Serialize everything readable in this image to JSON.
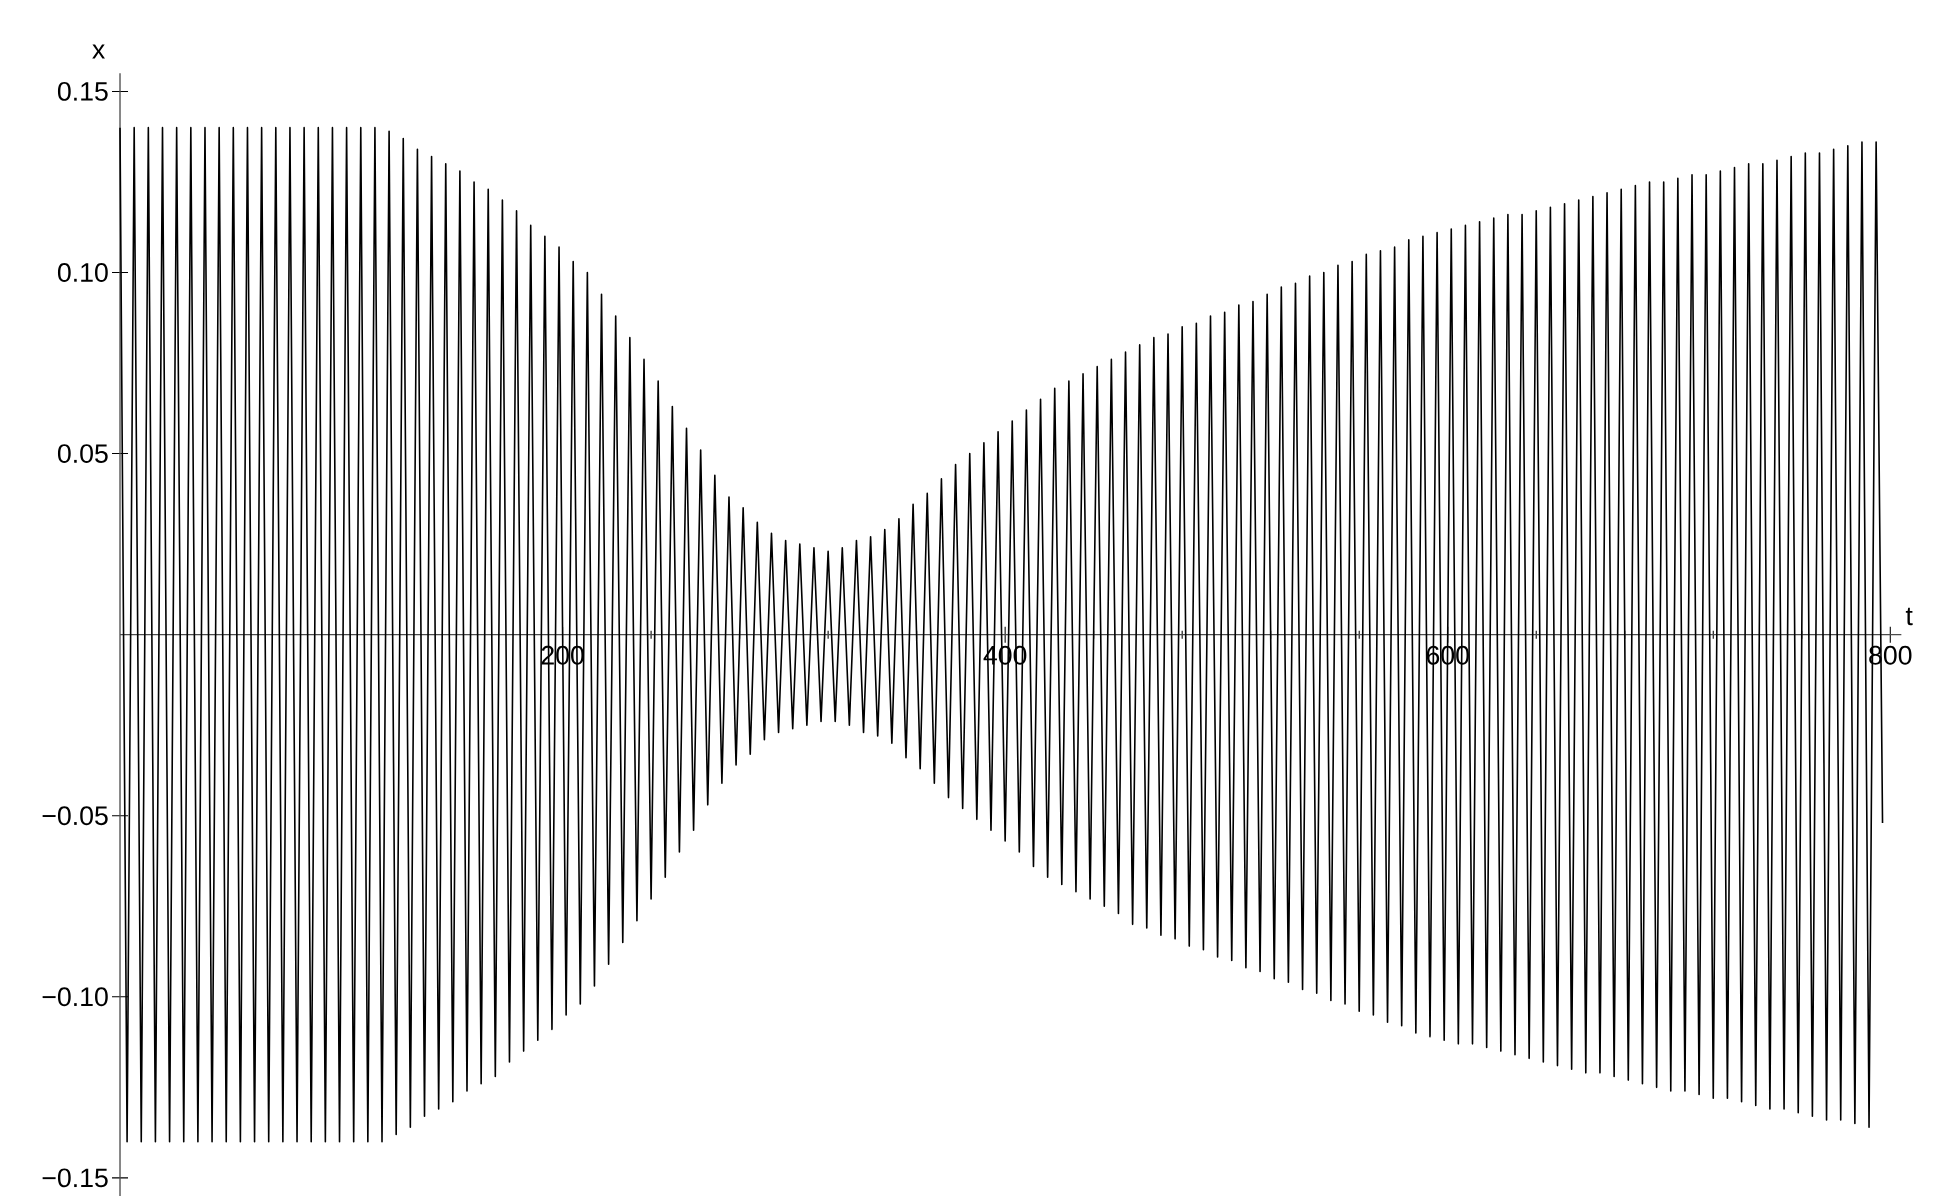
{
  "chart_data": {
    "type": "line",
    "xlabel": "t",
    "ylabel": "x",
    "marker": "none",
    "grid": false,
    "xlim": [
      0,
      805
    ],
    "ylim": [
      -0.155,
      0.155
    ],
    "xticks": [
      200,
      400,
      600,
      800
    ],
    "yticks": [
      {
        "value": -0.15,
        "label": "−0.15"
      },
      {
        "value": -0.1,
        "label": "−0.10"
      },
      {
        "value": -0.05,
        "label": "−0.05"
      },
      {
        "value": 0.05,
        "label": "0.05"
      },
      {
        "value": 0.1,
        "label": "0.10"
      },
      {
        "value": 0.15,
        "label": "0.15"
      }
    ],
    "series": [
      {
        "color": "#000000",
        "x": [
          0,
          3.2,
          6.4,
          9.6,
          12.8,
          16,
          19.2,
          22.4,
          25.6,
          28.8,
          32,
          35.2,
          38.4,
          41.6,
          44.8,
          48,
          51.2,
          54.4,
          57.6,
          60.8,
          64,
          67.2,
          70.4,
          73.6,
          76.8,
          80,
          83.2,
          86.4,
          89.6,
          92.8,
          96,
          99.2,
          102.4,
          105.6,
          108.8,
          112,
          115.2,
          118.4,
          121.6,
          124.8,
          128,
          131.2,
          134.4,
          137.6,
          140.8,
          144,
          147.2,
          150.4,
          153.6,
          156.8,
          160,
          163.2,
          166.4,
          169.6,
          172.8,
          176,
          179.2,
          182.4,
          185.6,
          188.8,
          192,
          195.2,
          198.4,
          201.6,
          204.8,
          208,
          211.2,
          214.4,
          217.6,
          220.8,
          224,
          227.2,
          230.4,
          233.6,
          236.8,
          240,
          243.2,
          246.4,
          249.6,
          252.8,
          256,
          259.2,
          262.4,
          265.6,
          268.8,
          272,
          275.2,
          278.4,
          281.6,
          284.8,
          288,
          291.2,
          294.4,
          297.6,
          300.8,
          304,
          307.2,
          310.4,
          313.6,
          316.8,
          320,
          323.2,
          326.4,
          329.6,
          332.8,
          336,
          339.2,
          342.4,
          345.6,
          348.8,
          352,
          355.2,
          358.4,
          361.6,
          364.8,
          368,
          371.2,
          374.4,
          377.6,
          380.8,
          384,
          387.2,
          390.4,
          393.6,
          396.8,
          400,
          403.2,
          406.4,
          409.6,
          412.8,
          416,
          419.2,
          422.4,
          425.6,
          428.8,
          432,
          435.2,
          438.4,
          441.6,
          444.8,
          448,
          451.2,
          454.4,
          457.6,
          460.8,
          464,
          467.2,
          470.4,
          473.6,
          476.8,
          480,
          483.2,
          486.4,
          489.6,
          492.8,
          496,
          499.2,
          502.4,
          505.6,
          508.8,
          512,
          515.2,
          518.4,
          521.6,
          524.8,
          528,
          531.2,
          534.4,
          537.6,
          540.8,
          544,
          547.2,
          550.4,
          553.6,
          556.8,
          560,
          563.2,
          566.4,
          569.6,
          572.8,
          576,
          579.2,
          582.4,
          585.6,
          588.8,
          592,
          595.2,
          598.4,
          601.6,
          604.8,
          608,
          611.2,
          614.4,
          617.6,
          620.8,
          624,
          627.2,
          630.4,
          633.6,
          636.8,
          640,
          643.2,
          646.4,
          649.6,
          652.8,
          656,
          659.2,
          662.4,
          665.6,
          668.8,
          672,
          675.2,
          678.4,
          681.6,
          684.8,
          688,
          691.2,
          694.4,
          697.6,
          700.8,
          704,
          707.2,
          710.4,
          713.6,
          716.8,
          720,
          723.2,
          726.4,
          729.6,
          732.8,
          736,
          739.2,
          742.4,
          745.6,
          748.8,
          752,
          755.2,
          758.4,
          761.6,
          764.8,
          768,
          771.2,
          774.4,
          777.6,
          780.8,
          784,
          787.2,
          790.4,
          793.6,
          796.5
        ],
        "values": [
          0.14,
          -0.14,
          0.14,
          -0.14,
          0.14,
          -0.14,
          0.14,
          -0.14,
          0.14,
          -0.14,
          0.14,
          -0.14,
          0.14,
          -0.14,
          0.14,
          -0.14,
          0.14,
          -0.14,
          0.14,
          -0.14,
          0.14,
          -0.14,
          0.14,
          -0.14,
          0.14,
          -0.14,
          0.14,
          -0.14,
          0.14,
          -0.14,
          0.14,
          -0.14,
          0.14,
          -0.14,
          0.14,
          -0.14,
          0.14,
          -0.14,
          0.139,
          -0.138,
          0.137,
          -0.136,
          0.134,
          -0.133,
          0.132,
          -0.131,
          0.13,
          -0.129,
          0.128,
          -0.126,
          0.125,
          -0.124,
          0.123,
          -0.122,
          0.12,
          -0.118,
          0.117,
          -0.115,
          0.113,
          -0.112,
          0.11,
          -0.109,
          0.107,
          -0.105,
          0.103,
          -0.102,
          0.1,
          -0.097,
          0.094,
          -0.091,
          0.088,
          -0.085,
          0.082,
          -0.079,
          0.076,
          -0.073,
          0.07,
          -0.067,
          0.063,
          -0.06,
          0.057,
          -0.054,
          0.051,
          -0.047,
          0.044,
          -0.041,
          0.038,
          -0.036,
          0.035,
          -0.033,
          0.031,
          -0.029,
          0.028,
          -0.027,
          0.026,
          -0.026,
          0.025,
          -0.025,
          0.024,
          -0.024,
          0.023,
          -0.024,
          0.024,
          -0.025,
          0.026,
          -0.027,
          0.027,
          -0.028,
          0.029,
          -0.03,
          0.032,
          -0.034,
          0.036,
          -0.037,
          0.039,
          -0.041,
          0.043,
          -0.045,
          0.047,
          -0.048,
          0.05,
          -0.051,
          0.053,
          -0.054,
          0.056,
          -0.057,
          0.059,
          -0.06,
          0.062,
          -0.064,
          0.065,
          -0.067,
          0.068,
          -0.069,
          0.07,
          -0.071,
          0.072,
          -0.073,
          0.074,
          -0.075,
          0.076,
          -0.077,
          0.078,
          -0.08,
          0.08,
          -0.081,
          0.082,
          -0.083,
          0.083,
          -0.084,
          0.085,
          -0.086,
          0.086,
          -0.087,
          0.088,
          -0.089,
          0.089,
          -0.09,
          0.091,
          -0.092,
          0.092,
          -0.093,
          0.094,
          -0.095,
          0.096,
          -0.096,
          0.097,
          -0.098,
          0.099,
          -0.099,
          0.1,
          -0.101,
          0.102,
          -0.102,
          0.103,
          -0.104,
          0.105,
          -0.105,
          0.106,
          -0.107,
          0.107,
          -0.108,
          0.109,
          -0.11,
          0.11,
          -0.111,
          0.111,
          -0.112,
          0.112,
          -0.113,
          0.113,
          -0.113,
          0.114,
          -0.114,
          0.115,
          -0.115,
          0.116,
          -0.116,
          0.116,
          -0.117,
          0.117,
          -0.118,
          0.118,
          -0.119,
          0.119,
          -0.12,
          0.12,
          -0.121,
          0.121,
          -0.121,
          0.122,
          -0.122,
          0.123,
          -0.123,
          0.124,
          -0.124,
          0.125,
          -0.125,
          0.125,
          -0.126,
          0.126,
          -0.126,
          0.127,
          -0.127,
          0.127,
          -0.128,
          0.128,
          -0.128,
          0.129,
          -0.129,
          0.13,
          -0.13,
          0.13,
          -0.131,
          0.131,
          -0.131,
          0.132,
          -0.132,
          0.133,
          -0.133,
          0.133,
          -0.134,
          0.134,
          -0.134,
          0.135,
          -0.135,
          0.136,
          -0.136,
          0.136,
          -0.052
        ]
      }
    ]
  }
}
